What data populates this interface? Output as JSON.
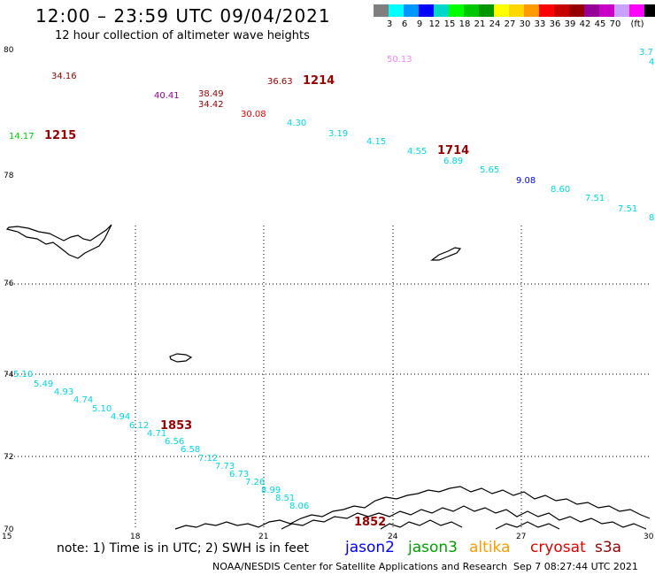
{
  "title": "12:00 – 23:59 UTC 09/04/2021",
  "subtitle": "12 hour collection of altimeter wave heights",
  "colorbar": {
    "colors": [
      "#7f7f7f",
      "#00ffff",
      "#0096ff",
      "#0000ff",
      "#00d7c8",
      "#00ff00",
      "#00c800",
      "#009600",
      "#ffff00",
      "#ffd700",
      "#ff9b00",
      "#ff0000",
      "#c80000",
      "#960000",
      "#960096",
      "#c800c8",
      "#c8a0ff",
      "#ff00ff",
      "#000000"
    ],
    "labels": [
      "3",
      "6",
      "9",
      "12",
      "15",
      "18",
      "21",
      "24",
      "27",
      "30",
      "33",
      "36",
      "39",
      "42",
      "45",
      "70"
    ],
    "unit": "(ft)"
  },
  "axes": {
    "x_ticks": [
      "15",
      "18",
      "21",
      "24",
      "27",
      "30"
    ],
    "y_ticks": [
      "80",
      "78",
      "76",
      "74",
      "72",
      "70"
    ]
  },
  "observations": [
    {
      "text": "34.16",
      "color": "#960000"
    },
    {
      "text": "40.41",
      "color": "#960096"
    },
    {
      "text": "38.49",
      "color": "#960000"
    },
    {
      "text": "34.42",
      "color": "#960000"
    },
    {
      "text": "36.63",
      "color": "#960000"
    },
    {
      "text": "1214",
      "color": "#960000"
    },
    {
      "text": "50.13",
      "color": "#ff80ff"
    },
    {
      "text": "30.08",
      "color": "#e00000"
    },
    {
      "text": "14.17",
      "color": "#00d000"
    },
    {
      "text": "1215",
      "color": "#960000"
    },
    {
      "text": "4.30",
      "color": "#00d7e6"
    },
    {
      "text": "3.19",
      "color": "#00d7e6"
    },
    {
      "text": "4.15",
      "color": "#00d7e6"
    },
    {
      "text": "4.55",
      "color": "#00d7e6"
    },
    {
      "text": "1714",
      "color": "#960000"
    },
    {
      "text": "6.89",
      "color": "#00d7e6"
    },
    {
      "text": "5.65",
      "color": "#00d7e6"
    },
    {
      "text": "9.08",
      "color": "#0000ff"
    },
    {
      "text": "8.60",
      "color": "#00d7e6"
    },
    {
      "text": "7.51",
      "color": "#00d7e6"
    },
    {
      "text": "7.51",
      "color": "#00d7e6"
    },
    {
      "text": "3.7",
      "color": "#00d7e6"
    },
    {
      "text": "4",
      "color": "#00d7e6"
    },
    {
      "text": "8",
      "color": "#00d7e6"
    },
    {
      "text": "5.10",
      "color": "#00d7e6"
    },
    {
      "text": "5.49",
      "color": "#00d7e6"
    },
    {
      "text": "4.93",
      "color": "#00d7e6"
    },
    {
      "text": "4.74",
      "color": "#00d7e6"
    },
    {
      "text": "5.10",
      "color": "#00d7e6"
    },
    {
      "text": "4.94",
      "color": "#00d7e6"
    },
    {
      "text": "6.12",
      "color": "#00d7e6"
    },
    {
      "text": "1853",
      "color": "#960000"
    },
    {
      "text": "4.71",
      "color": "#00d7e6"
    },
    {
      "text": "6.56",
      "color": "#00d7e6"
    },
    {
      "text": "6.58",
      "color": "#00d7e6"
    },
    {
      "text": "7.12",
      "color": "#00d7e6"
    },
    {
      "text": "7.73",
      "color": "#00d7e6"
    },
    {
      "text": "6.73",
      "color": "#00d7e6"
    },
    {
      "text": "7.26",
      "color": "#00d7e6"
    },
    {
      "text": "8.99",
      "color": "#00d7e6"
    },
    {
      "text": "8.51",
      "color": "#00d7e6"
    },
    {
      "text": "8.06",
      "color": "#00d7e6"
    },
    {
      "text": "1852",
      "color": "#960000"
    }
  ],
  "note": "note: 1) Time is in UTC; 2) SWH is in feet",
  "satellites": [
    {
      "name": "jason2",
      "color": "#0000ff"
    },
    {
      "name": "jason3",
      "color": "#00a000"
    },
    {
      "name": "altika",
      "color": "#ff9b00"
    },
    {
      "name": "cryosat",
      "color": "#e00000"
    },
    {
      "name": "s3a",
      "color": "#960000"
    }
  ],
  "footer": "NOAA/NESDIS Center for Satellite Applications and Research",
  "footer_time": "Sep  7 08:27:44 UTC 2021"
}
